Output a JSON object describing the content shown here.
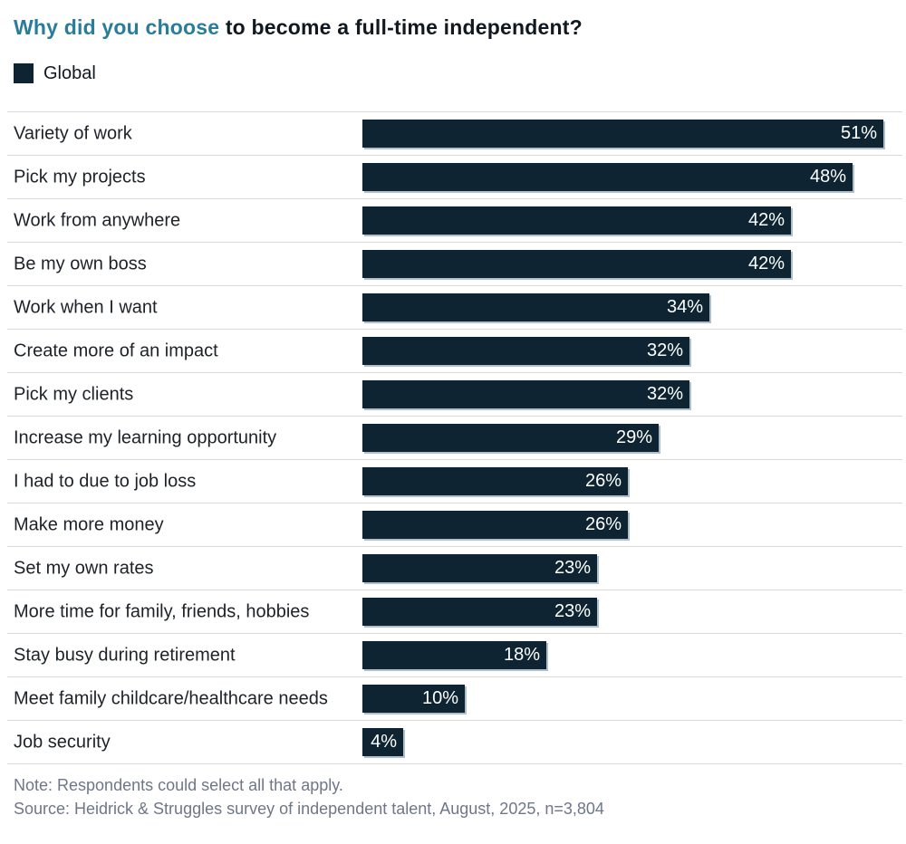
{
  "header": {
    "title_highlight": "Why did you choose",
    "title_rest": "to become a full-time independent?"
  },
  "legend": {
    "label": "Global"
  },
  "chart_data": {
    "type": "bar",
    "orientation": "horizontal",
    "title": "Why did you choose to become a full-time independent?",
    "legend_entries": [
      "Global"
    ],
    "legend_position": "top-left",
    "grid": false,
    "value_suffix": "%",
    "xlim": [
      0,
      52
    ],
    "label_position": "inside-end",
    "categories": [
      "Variety of work",
      "Pick my projects",
      "Work from anywhere",
      "Be my own boss",
      "Work when I want",
      "Create more of an impact",
      "Pick my clients",
      "Increase my learning opportunity",
      "I had to due to job loss",
      "Make more money",
      "Set my own rates",
      "More time for family, friends, hobbies",
      "Stay busy during retirement",
      "Meet family childcare/healthcare needs",
      "Job security"
    ],
    "values": [
      51,
      48,
      42,
      42,
      34,
      32,
      32,
      29,
      26,
      26,
      23,
      23,
      18,
      10,
      4
    ]
  },
  "footer": {
    "note": "Note: Respondents could select all that apply.",
    "source": "Source: Heidrick & Struggles survey of independent talent, August, 2025, n=3,804"
  },
  "colors": {
    "accent_teal": "#2A7D9A",
    "title_dark": "#101820",
    "bar_navy": "#0E2433",
    "label_dark": "#1C2228",
    "separator": "#D9D9D9",
    "bar_shadow": "#AEBFC9",
    "footer_gray": "#6E7787",
    "value_text": "#FFFFFF"
  }
}
